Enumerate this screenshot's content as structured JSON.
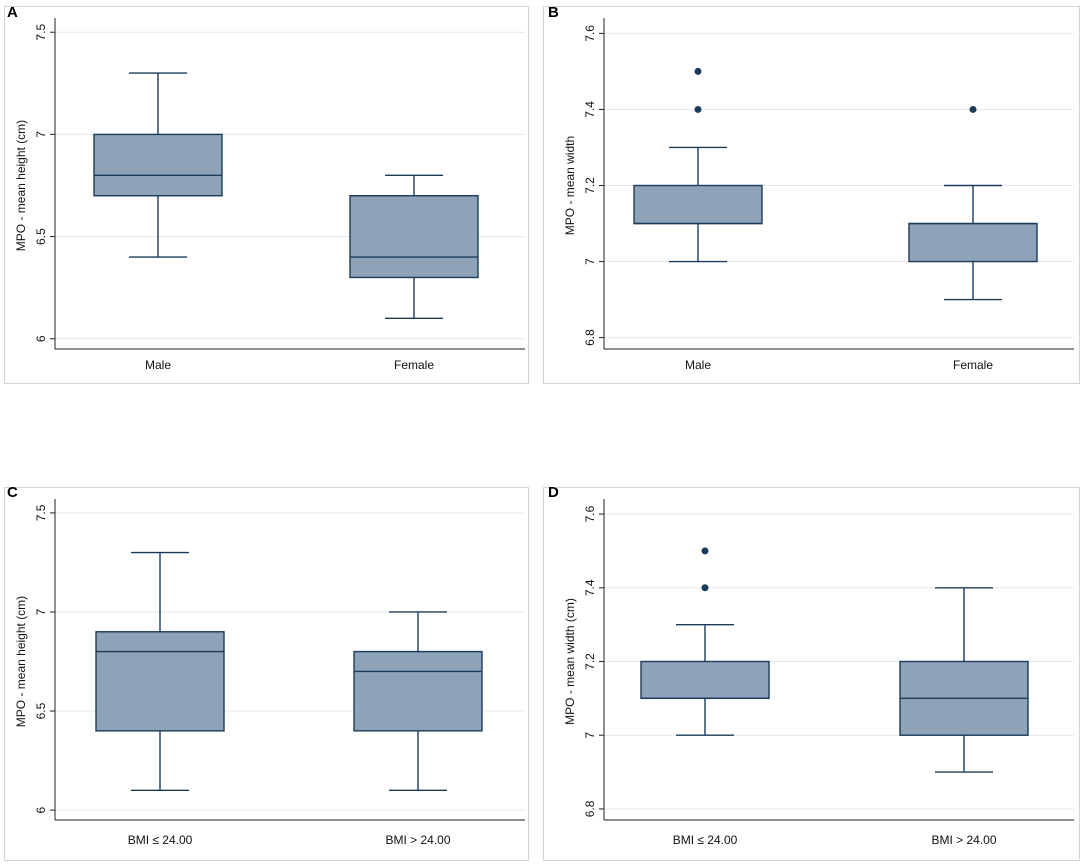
{
  "colors": {
    "box_fill": "#8fa3b8",
    "box_stroke": "#1a3b5a",
    "whisker": "#1a3b5a",
    "outlier": "#1a3b5a",
    "grid": "#e6eaee",
    "axis": "#222222",
    "text": "#111111"
  },
  "chart_data": [
    {
      "id": "A",
      "type": "box",
      "panel_label": "A",
      "ylabel": "MPO - mean height (cm)",
      "xlabel": "",
      "ylim": [
        5.95,
        7.55
      ],
      "yticks": [
        6,
        6.5,
        7,
        7.5
      ],
      "ytick_labels": [
        "6",
        "6.5",
        "7",
        "7.5"
      ],
      "grid": true,
      "categories": [
        "Male",
        "Female"
      ],
      "boxes": [
        {
          "name": "Male",
          "whisker_low": 6.4,
          "q1": 6.7,
          "median": 6.8,
          "q3": 7.0,
          "whisker_high": 7.3,
          "outliers": []
        },
        {
          "name": "Female",
          "whisker_low": 6.1,
          "q1": 6.3,
          "median": 6.4,
          "q3": 6.7,
          "whisker_high": 6.8,
          "outliers": []
        }
      ]
    },
    {
      "id": "B",
      "type": "box",
      "panel_label": "B",
      "ylabel": "MPO - mean width",
      "xlabel": "",
      "ylim": [
        6.77,
        7.63
      ],
      "yticks": [
        6.8,
        7.0,
        7.2,
        7.4,
        7.6
      ],
      "ytick_labels": [
        "6.8",
        "7",
        "7.2",
        "7.4",
        "7.6"
      ],
      "grid": true,
      "categories": [
        "Male",
        "Female"
      ],
      "boxes": [
        {
          "name": "Male",
          "whisker_low": 7.0,
          "q1": 7.1,
          "median": 7.1,
          "q3": 7.2,
          "whisker_high": 7.3,
          "outliers": [
            7.4,
            7.5
          ]
        },
        {
          "name": "Female",
          "whisker_low": 6.9,
          "q1": 7.0,
          "median": 7.1,
          "q3": 7.1,
          "whisker_high": 7.2,
          "outliers": [
            7.4
          ]
        }
      ]
    },
    {
      "id": "C",
      "type": "box",
      "panel_label": "C",
      "ylabel": "MPO - mean height (cm)",
      "xlabel": "",
      "ylim": [
        5.95,
        7.55
      ],
      "yticks": [
        6,
        6.5,
        7,
        7.5
      ],
      "ytick_labels": [
        "6",
        "6.5",
        "7",
        "7.5"
      ],
      "grid": true,
      "categories": [
        "BMI ≤ 24.00",
        "BMI > 24.00"
      ],
      "boxes": [
        {
          "name": "BMI ≤ 24.00",
          "whisker_low": 6.1,
          "q1": 6.4,
          "median": 6.8,
          "q3": 6.9,
          "whisker_high": 7.3,
          "outliers": []
        },
        {
          "name": "BMI > 24.00",
          "whisker_low": 6.1,
          "q1": 6.4,
          "median": 6.7,
          "q3": 6.8,
          "whisker_high": 7.0,
          "outliers": []
        }
      ]
    },
    {
      "id": "D",
      "type": "box",
      "panel_label": "D",
      "ylabel": "MPO - mean width (cm)",
      "xlabel": "",
      "ylim": [
        6.77,
        7.63
      ],
      "yticks": [
        6.8,
        7.0,
        7.2,
        7.4,
        7.6
      ],
      "ytick_labels": [
        "6.8",
        "7",
        "7.2",
        "7.4",
        "7.6"
      ],
      "grid": true,
      "categories": [
        "BMI ≤ 24.00",
        "BMI > 24.00"
      ],
      "boxes": [
        {
          "name": "BMI ≤ 24.00",
          "whisker_low": 7.0,
          "q1": 7.1,
          "median": 7.1,
          "q3": 7.2,
          "whisker_high": 7.3,
          "outliers": [
            7.4,
            7.5
          ]
        },
        {
          "name": "BMI > 24.00",
          "whisker_low": 6.9,
          "q1": 7.0,
          "median": 7.1,
          "q3": 7.2,
          "whisker_high": 7.4,
          "outliers": []
        }
      ]
    }
  ]
}
